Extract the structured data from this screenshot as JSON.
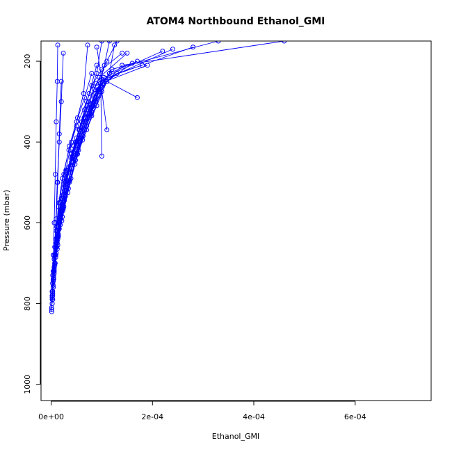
{
  "chart_data": {
    "type": "line",
    "title": "ATOM4 Northbound Ethanol_GMI",
    "xlabel": "Ethanol_GMI",
    "ylabel": "Pressure (mbar)",
    "xlim": [
      -2e-05,
      0.00075
    ],
    "ylim": [
      1040,
      150
    ],
    "y_reversed": true,
    "x_ticks": [
      0,
      0.0002,
      0.0004,
      0.0006
    ],
    "x_tick_labels": [
      "0e+00",
      "2e-04",
      "4e-04",
      "6e-04"
    ],
    "y_ticks": [
      200,
      400,
      600,
      800,
      1000
    ],
    "y_tick_labels": [
      "200",
      "400",
      "600",
      "800",
      "1000"
    ],
    "grid": false,
    "legend": "none",
    "series_color": "#0000ff",
    "marker": "open-circle",
    "series": [
      {
        "x": [
          1e-06,
          2e-06,
          3e-06,
          4e-06,
          6e-06,
          8e-06,
          1e-05,
          1.2e-05,
          1.3e-05
        ],
        "y": [
          820,
          780,
          730,
          680,
          600,
          480,
          350,
          250,
          160
        ]
      },
      {
        "x": [
          2e-06,
          4e-06,
          6e-06,
          9e-06,
          1.2e-05,
          1.6e-05,
          2e-05,
          2.4e-05
        ],
        "y": [
          800,
          740,
          680,
          600,
          500,
          400,
          300,
          180
        ]
      },
      {
        "x": [
          3e-06,
          5e-06,
          9e-06,
          1.4e-05,
          2.2e-05,
          3.5e-05,
          5e-05,
          7e-05,
          9e-05,
          0.0001
        ],
        "y": [
          790,
          720,
          640,
          560,
          490,
          420,
          360,
          300,
          230,
          150
        ]
      },
      {
        "x": [
          4e-06,
          7e-06,
          1.2e-05,
          2e-05,
          3.2e-05,
          4.8e-05,
          6.5e-05,
          8.5e-05,
          0.00011,
          0.00013
        ],
        "y": [
          760,
          700,
          620,
          540,
          470,
          400,
          340,
          270,
          200,
          150
        ]
      },
      {
        "x": [
          2e-06,
          6e-06,
          1.1e-05,
          1.8e-05,
          3e-05,
          4.5e-05,
          6e-05,
          7.5e-05,
          9e-05
        ],
        "y": [
          770,
          690,
          610,
          550,
          480,
          410,
          350,
          280,
          210
        ]
      },
      {
        "x": [
          5e-06,
          1e-05,
          1.6e-05,
          2.6e-05,
          4e-05,
          5.5e-05,
          7.2e-05,
          9.2e-05,
          0.000115,
          0.00017
        ],
        "y": [
          740,
          660,
          590,
          520,
          450,
          390,
          330,
          270,
          230,
          200
        ]
      },
      {
        "x": [
          3e-06,
          8e-06,
          1.4e-05,
          2.4e-05,
          3.7e-05,
          5e-05,
          6.6e-05,
          8e-05,
          0.0001,
          0.00014
        ],
        "y": [
          750,
          680,
          600,
          530,
          460,
          390,
          320,
          260,
          220,
          180
        ]
      },
      {
        "x": [
          6e-06,
          1.2e-05,
          2e-05,
          3.3e-05,
          4.6e-05,
          6e-05,
          7.8e-05,
          9.8e-05,
          0.00013,
          0.00018
        ],
        "y": [
          720,
          650,
          580,
          500,
          440,
          380,
          320,
          260,
          230,
          210
        ]
      },
      {
        "x": [
          2e-06,
          7e-06,
          1.3e-05,
          2.2e-05,
          3.4e-05,
          5e-05,
          6.8e-05,
          8.8e-05,
          0.00012,
          0.00033
        ],
        "y": [
          780,
          700,
          620,
          540,
          470,
          400,
          340,
          280,
          220,
          150
        ]
      },
      {
        "x": [
          4e-06,
          9e-06,
          1.7e-05,
          2.9e-05,
          4.3e-05,
          5.8e-05,
          7.6e-05,
          9.6e-05,
          0.00014,
          0.00046
        ],
        "y": [
          760,
          680,
          600,
          520,
          450,
          390,
          330,
          270,
          210,
          150
        ]
      },
      {
        "x": [
          1e-06,
          3e-06,
          6e-06,
          1e-05,
          1.6e-05,
          2.5e-05,
          3.6e-05,
          5e-05,
          6.6e-05,
          8e-05
        ],
        "y": [
          810,
          750,
          690,
          620,
          550,
          480,
          410,
          350,
          290,
          230
        ]
      },
      {
        "x": [
          5e-06,
          1.1e-05,
          1.9e-05,
          3e-05,
          4.4e-05,
          6e-05,
          7.9e-05,
          9.4e-05,
          0.000105,
          0.000115
        ],
        "y": [
          730,
          660,
          590,
          520,
          450,
          390,
          330,
          270,
          210,
          150
        ]
      },
      {
        "x": [
          2e-06,
          5e-06,
          1e-05,
          1.7e-05,
          2.7e-05,
          4e-05,
          5.6e-05,
          7.4e-05,
          9.5e-05,
          0.00015
        ],
        "y": [
          790,
          720,
          650,
          580,
          510,
          440,
          370,
          300,
          240,
          180
        ]
      },
      {
        "x": [
          3e-06,
          8e-06,
          1.5e-05,
          2.5e-05,
          3.9e-05,
          5.4e-05,
          7e-05,
          8.8e-05,
          0.00011,
          0.00016
        ],
        "y": [
          770,
          700,
          630,
          560,
          490,
          420,
          360,
          300,
          250,
          205
        ]
      },
      {
        "x": [
          6e-06,
          1.3e-05,
          2.3e-05,
          3.6e-05,
          5.2e-05,
          7e-05,
          9e-05,
          0.00011,
          0.00017
        ],
        "y": [
          710,
          640,
          570,
          500,
          430,
          370,
          310,
          250,
          290
        ]
      },
      {
        "x": [
          4e-06,
          1e-05,
          1.8e-05,
          2.8e-05,
          4.1e-05,
          5.7e-05,
          7.5e-05,
          9.5e-05,
          0.000115,
          0.000125
        ],
        "y": [
          745,
          675,
          605,
          535,
          465,
          400,
          340,
          285,
          230,
          160
        ]
      },
      {
        "x": [
          1e-06,
          2e-06,
          4e-06,
          7e-06,
          1e-05,
          1.3e-05,
          1.6e-05,
          2e-05
        ],
        "y": [
          815,
          770,
          720,
          660,
          590,
          500,
          380,
          250
        ]
      },
      {
        "x": [
          3e-06,
          7e-06,
          1.3e-05,
          2.1e-05,
          3.1e-05,
          4.4e-05,
          6e-05,
          7.8e-05,
          0.0001,
          0.00028
        ],
        "y": [
          775,
          705,
          635,
          565,
          495,
          425,
          365,
          305,
          245,
          165
        ]
      },
      {
        "x": [
          5e-06,
          1.2e-05,
          2.1e-05,
          3.3e-05,
          4.7e-05,
          6.2e-05,
          8e-05,
          0.0001,
          0.00011
        ],
        "y": [
          735,
          665,
          595,
          525,
          455,
          395,
          335,
          275,
          370
        ]
      },
      {
        "x": [
          2e-06,
          6e-06,
          1.2e-05,
          1.9e-05,
          2.9e-05,
          4.2e-05,
          5.8e-05,
          7.6e-05,
          9.7e-05,
          0.00019
        ],
        "y": [
          785,
          715,
          645,
          575,
          505,
          435,
          375,
          315,
          255,
          210
        ]
      },
      {
        "x": [
          7e-06,
          1.4e-05,
          2.4e-05,
          3.7e-05,
          5.1e-05,
          6.6e-05,
          8.3e-05,
          0.000101,
          9e-05
        ],
        "y": [
          705,
          635,
          565,
          495,
          430,
          370,
          310,
          255,
          165
        ]
      },
      {
        "x": [
          4e-06,
          9e-06,
          1.6e-05,
          2.6e-05,
          3.8e-05,
          5.2e-05,
          6.8e-05,
          8.6e-05,
          0.000104,
          0.00022
        ],
        "y": [
          755,
          685,
          615,
          545,
          475,
          410,
          350,
          290,
          240,
          175
        ]
      },
      {
        "x": [
          2e-06,
          4e-06,
          8e-06,
          1.3e-05,
          2e-05,
          2.9e-05,
          4e-05,
          5.2e-05,
          6.4e-05,
          7.2e-05
        ],
        "y": [
          800,
          740,
          680,
          610,
          540,
          470,
          400,
          340,
          280,
          160
        ]
      },
      {
        "x": [
          6e-06,
          1.3e-05,
          2.2e-05,
          3.4e-05,
          4.8e-05,
          6.3e-05,
          8e-05,
          9.8e-05,
          0.0001
        ],
        "y": [
          725,
          655,
          585,
          515,
          445,
          385,
          325,
          265,
          435
        ]
      },
      {
        "x": [
          3e-06,
          6e-06,
          1.1e-05,
          1.8e-05,
          2.8e-05,
          4e-05,
          5.5e-05,
          7.1e-05,
          8.9e-05,
          0.00024
        ],
        "y": [
          780,
          710,
          640,
          570,
          500,
          430,
          370,
          310,
          255,
          170
        ]
      }
    ]
  }
}
